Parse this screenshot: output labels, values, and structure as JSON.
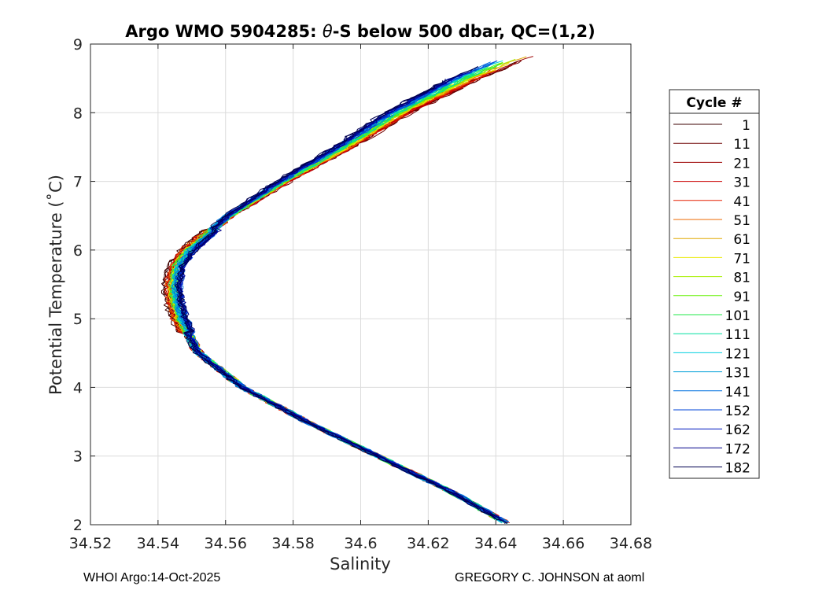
{
  "chart_data": {
    "type": "line",
    "title_prefix": "Argo WMO 5904285: ",
    "title_theta": "θ",
    "title_suffix": "-S below 500 dbar,  QC=(1,2)",
    "xlabel": "Salinity",
    "ylabel": "Potential Temperature (˚C)",
    "xlim": [
      34.52,
      34.68
    ],
    "ylim": [
      2,
      9
    ],
    "xticks": [
      34.52,
      34.54,
      34.56,
      34.58,
      34.6,
      34.62,
      34.64,
      34.66,
      34.68
    ],
    "xtick_labels": [
      "34.52",
      "34.54",
      "34.56",
      "34.58",
      "34.6",
      "34.62",
      "34.64",
      "34.66",
      "34.68"
    ],
    "yticks": [
      2,
      3,
      4,
      5,
      6,
      7,
      8,
      9
    ],
    "ytick_labels": [
      "2",
      "3",
      "4",
      "5",
      "6",
      "7",
      "8",
      "9"
    ],
    "grid": true,
    "legend_title": "Cycle #",
    "legend_position": "right-outside",
    "base_profile": {
      "theta": [
        2.0,
        2.5,
        3.0,
        3.5,
        4.0,
        4.5,
        5.0,
        5.25,
        5.5,
        5.75,
        6.0,
        6.5,
        7.0,
        7.5,
        8.0,
        8.5,
        8.85
      ],
      "salinity": [
        34.644,
        34.626,
        34.605,
        34.584,
        34.565,
        34.552,
        34.5465,
        34.545,
        34.5445,
        34.5455,
        34.549,
        34.561,
        34.577,
        34.595,
        34.611,
        34.631,
        34.648
      ]
    },
    "series": [
      {
        "name": "1",
        "color": "#3d0000"
      },
      {
        "name": "11",
        "color": "#6e0000"
      },
      {
        "name": "21",
        "color": "#9c0000"
      },
      {
        "name": "31",
        "color": "#cc0000"
      },
      {
        "name": "41",
        "color": "#e61e00"
      },
      {
        "name": "51",
        "color": "#ec6a00"
      },
      {
        "name": "61",
        "color": "#e0a800"
      },
      {
        "name": "71",
        "color": "#eaea00"
      },
      {
        "name": "81",
        "color": "#a8f000"
      },
      {
        "name": "91",
        "color": "#62f000"
      },
      {
        "name": "101",
        "color": "#22ea48"
      },
      {
        "name": "111",
        "color": "#00e0a0"
      },
      {
        "name": "121",
        "color": "#00d0e0"
      },
      {
        "name": "131",
        "color": "#00a0d8"
      },
      {
        "name": "141",
        "color": "#0070e0"
      },
      {
        "name": "152",
        "color": "#0044d8"
      },
      {
        "name": "162",
        "color": "#0018c0"
      },
      {
        "name": "172",
        "color": "#00008c"
      },
      {
        "name": "182",
        "color": "#000050"
      }
    ]
  },
  "footer": {
    "left": "WHOI Argo:14-Oct-2025",
    "right": "GREGORY C. JOHNSON at aoml"
  }
}
